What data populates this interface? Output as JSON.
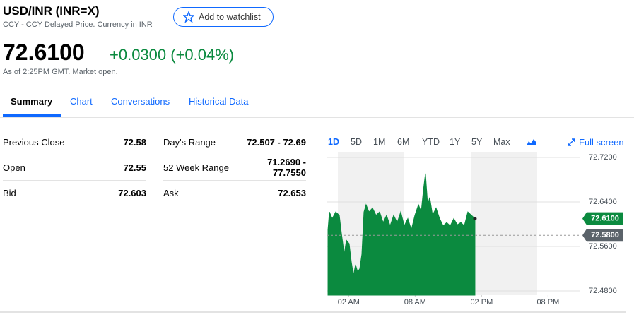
{
  "header": {
    "title": "USD/INR (INR=X)",
    "subtitle": "CCY - CCY Delayed Price. Currency in INR",
    "watchlist_button": "Add to watchlist",
    "price": "72.6100",
    "change": "+0.0300 (+0.04%)",
    "timestamp": "As of 2:25PM GMT. Market open."
  },
  "tabs": [
    "Summary",
    "Chart",
    "Conversations",
    "Historical Data"
  ],
  "stats": {
    "left": [
      [
        "Previous Close",
        "72.58"
      ],
      [
        "Open",
        "72.55"
      ],
      [
        "Bid",
        "72.603"
      ]
    ],
    "right": [
      [
        "Day's Range",
        "72.507 - 72.69"
      ],
      [
        "52 Week Range",
        "71.2690 - 77.7550"
      ],
      [
        "Ask",
        "72.653"
      ]
    ]
  },
  "chart_controls": {
    "ranges": [
      "1D",
      "5D",
      "1M",
      "6M",
      "YTD",
      "1Y",
      "5Y",
      "Max"
    ],
    "full_screen": "Full screen"
  },
  "chart_data": {
    "type": "area",
    "color": "#0b8a3f",
    "x": [
      0.13,
      0.26,
      0.51,
      0.83,
      1.15,
      1.34,
      1.6,
      1.79,
      2.04,
      2.23,
      2.43,
      2.62,
      2.81,
      3.0,
      3.19,
      3.38,
      3.57,
      3.83,
      4.15,
      4.47,
      4.79,
      5.11,
      5.42,
      5.74,
      6.06,
      6.38,
      6.7,
      7.02,
      7.34,
      7.66,
      7.98,
      8.3,
      8.55,
      8.74,
      8.93,
      9.13,
      9.32,
      9.57,
      9.89,
      10.21,
      10.53,
      10.85,
      11.17,
      11.49,
      11.81,
      12.13,
      12.44,
      12.76,
      13.08,
      13.4
    ],
    "values": [
      72.59,
      72.622,
      72.61,
      72.622,
      72.616,
      72.584,
      72.546,
      72.571,
      72.565,
      72.533,
      72.508,
      72.527,
      72.514,
      72.52,
      72.546,
      72.622,
      72.635,
      72.622,
      72.629,
      72.616,
      72.622,
      72.603,
      72.616,
      72.597,
      72.616,
      72.603,
      72.622,
      72.597,
      72.61,
      72.59,
      72.616,
      72.635,
      72.622,
      72.66,
      72.691,
      72.635,
      72.648,
      72.616,
      72.629,
      72.61,
      72.597,
      72.603,
      72.597,
      72.61,
      72.599,
      72.603,
      72.597,
      72.622,
      72.616,
      72.61
    ],
    "xlim": [
      0,
      22.85
    ],
    "ylim": [
      72.4724,
      72.7302
    ],
    "xticks": [
      {
        "value": 2,
        "label": "02 AM"
      },
      {
        "value": 8,
        "label": "08 AM"
      },
      {
        "value": 14,
        "label": "02 PM"
      },
      {
        "value": 20,
        "label": "08 PM"
      }
    ],
    "yticks": [
      {
        "value": 72.72,
        "label": "72.7200"
      },
      {
        "value": 72.64,
        "label": "72.6400"
      },
      {
        "value": 72.56,
        "label": "72.5600"
      },
      {
        "value": 72.48,
        "label": "72.4800"
      }
    ],
    "grid": true,
    "current_price": {
      "value": 72.61,
      "label": "72.6100"
    },
    "previous_close": {
      "value": 72.58,
      "label": "72.5800"
    }
  }
}
